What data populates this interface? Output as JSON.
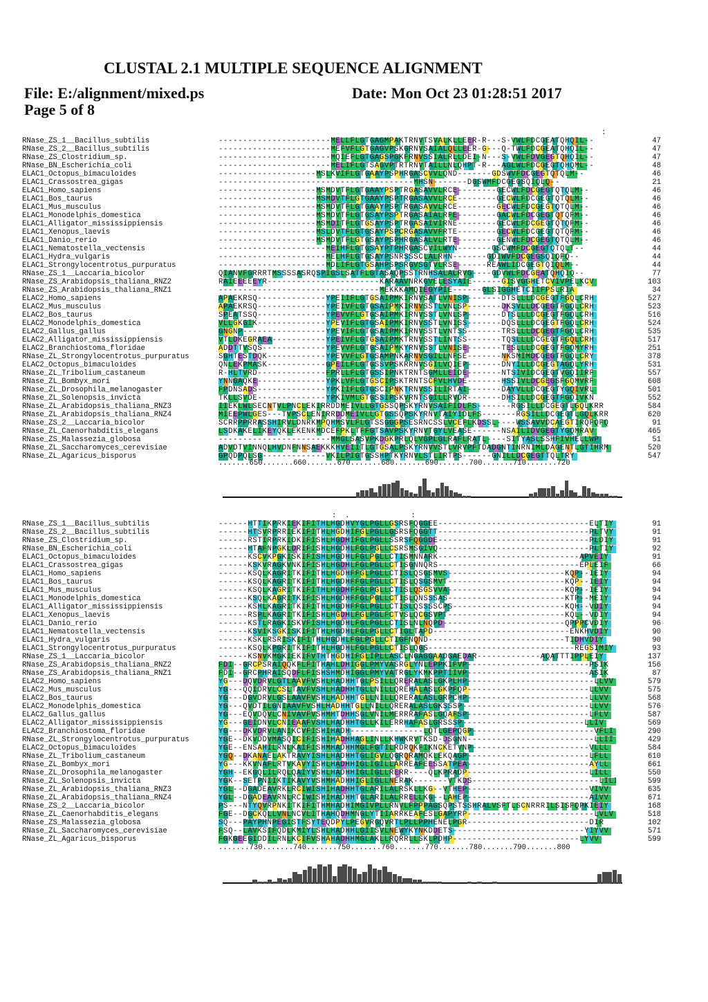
{
  "header": {
    "title": "CLUSTAL 2.1 MULTIPLE SEQUENCE ALIGNMENT",
    "file": "File: E:/alignment/mixed.ps",
    "date": "Date: Mon Oct 23 01:28:51 2017",
    "page": "Page 5 of 8"
  },
  "colors": {
    "green": "#2fbf62",
    "cyan": "#3cc8d8",
    "teal": "#1aa68a",
    "yellow": "#f2e44a",
    "orange": "#f0a23a",
    "purple": "#b070c8",
    "gray": "#4a4a4a"
  },
  "blocks": [
    {
      "conservation": ":",
      "ruler": ".......650.......660.......670.......680.......690.......700.......710.......720",
      "rows": [
        {
          "name": "RNase_ZS_1__Bacillus_subtilis",
          "seq": "-----------------------MELLFLGTGAGMPAKTRNVTSVALKLLEER-R---S-VWLFDCGEATQHQIL--",
          "count": "47"
        },
        {
          "name": "RNase_ZS_2__Bacillus_subtilis",
          "seq": "-----------------------MEFVFLGTGAGVPSKGRNVSAIALQLLEER-G---Q-TWLFDCGEATQHQIL--",
          "count": "47"
        },
        {
          "name": "RNase_ZS_Clostridium_sp.",
          "seq": "-----------------------MQIEFLGTGAGSPGKFRNVSSIALRLLDEI-N---S-VWLFDVGEGTQHQIL--",
          "count": "47"
        },
        {
          "name": "RNase_BN_Escherichia_coli",
          "seq": "-----------------------MELIFLGTSAGVPTRTRNVTAILLNLQHPT-R---AGLWLFDCGEGTQHQML--",
          "count": "48"
        },
        {
          "name": "ELAC1_Octopus_bimaculoides",
          "seq": "--------------------MSLKVIFLGTGAAYPSPHRGASCVVLQND-------GDSWVFDCGEGTQTQLM--",
          "count": "46"
        },
        {
          "name": "ELAC1_Crassostrea_gigas",
          "seq": "----------------------------------------MHSN-------DGSWMFDCGEGSQIQLQ--",
          "count": "21"
        },
        {
          "name": "ELAC1_Homo_sapiens",
          "seq": "--------------------MSMDVTFLGTGAAYPSPTRGASAVVLRCE--------GECWLFDCGEGTQTQLM--",
          "count": "46"
        },
        {
          "name": "ELAC1_Bos_taurus",
          "seq": "--------------------MSMDVTFLGTGAAYPSPTRGASAVVLRCE--------GECWLFDCGEGTQTQLM--",
          "count": "46"
        },
        {
          "name": "ELAC1_Mus_musculus",
          "seq": "--------------------MSMDVTFLGTGAAYPSPTRGASAVVLRCE--------GECWLFDCGEGTQTQLM--",
          "count": "46"
        },
        {
          "name": "ELAC1_Monodelphis_domestica",
          "seq": "--------------------MSMDVTFLGTGSAYPSPTRGASAIALRFE--------GACWLFDCGEGTQTQFM--",
          "count": "46"
        },
        {
          "name": "ELAC1_Alligator_mississippiensis",
          "seq": "--------------------MSMDITFLGTGSAYPSPTRGASAIVIRNE--------GECWLFDCGEGTQTQFM--",
          "count": "46"
        },
        {
          "name": "ELAC1_Xenopus_laevis",
          "seq": "--------------------MSLDVTFLGTGSAYPSPCRGASAVVFRTE--------GECWLFDCGEGTQTQFM--",
          "count": "46"
        },
        {
          "name": "ELAC1_Danio_rerio",
          "seq": "--------------------MSMDVTFLGTGSAYPSPHRGASALVLRTE--------GENWLFDCGEGTQTQLM--",
          "count": "46"
        },
        {
          "name": "ELAC1_Nematostella_vectensis",
          "seq": "----------------------MEIHFLGTGSAYPTPHRGASCVILWYN-------GSCWMFDCGEGTQTQLT--",
          "count": "44"
        },
        {
          "name": "ELAC1_Hydra_vulgaris",
          "seq": "----------------------MELHFLGTGSAYPSNRSSSCLALRHN-------GDIWVFDCGEGSQIQFQ--",
          "count": "44"
        },
        {
          "name": "ELAC1_Strongylocentrotus_purpuratus",
          "seq": "----------------------MDLIFLGTGSAHPSPSRGVSGTVLRSE------REAWLIDCGEGTQIQLM--",
          "count": "44"
        },
        {
          "name": "RNase_ZS_1__Laccaria_bicolor",
          "seq": "QIANVFGRRRTMSSSSASRQSPIGSLSATFLGTASAQPSSTRNHSALALRVG----GDVWLFDCGEATQHQIQ--",
          "count": "77"
        },
        {
          "name": "RNase_ZS_Arabidopsis_thaliana_RNZ2",
          "seq": "RAIEEEEEYR-----------------------KARAAVNRKGVELESYAIE------GISVGGHETCVIVPELKCV",
          "count": "103"
        },
        {
          "name": "RNase_ZS_Arabidopsis_thaliana_RNZ1",
          "seq": "---------------------------------MEKKKAMQIEGYPIE------GLSIGGHETCIIFPSLRIA",
          "count": "34"
        },
        {
          "name": "ELAC2_Homo_sapiens",
          "seq": "APAEKRSQ--------------YPEIIFLGTGSAIPMKIRNVSATLVNISP-------DTSLLLDCGEGTFGQLCRH",
          "count": "527"
        },
        {
          "name": "ELAC2_Mus_musculus",
          "seq": "APAEKRSQ--------------YPEIVFLGTGSAIPMKIRNVSSTLVNLSP-------DKSVLLDCGEGTFGQLCRH",
          "count": "523"
        },
        {
          "name": "ELAC2_Bos_taurus",
          "seq": "SPEATSSQ--------------YPEVVFLGTGSAIPMKIRNVSSTLVNLSP-------DTSLLLDCGEGTFGQLCRH",
          "count": "516"
        },
        {
          "name": "ELAC2_Monodelphis_domestica",
          "seq": "VLLGKGIK--------------YPEVIFLGTGSAIPMKIRNVSSTLVNISS-------DQSLLLDCGEGTFGQLCRH",
          "count": "524"
        },
        {
          "name": "ELAC2_Gallus_gallus",
          "seq": "GNGNP-----------------YPEVIFLGTGSAIPMKIRNVSSTLVNTSS-------TRSLLLDCGEGTFGQLCRH",
          "count": "535"
        },
        {
          "name": "ELAC2_Alligator_mississippiensis",
          "seq": "VTLDKEGRAEA-----------YPEIVFLGTGSAIPMKTRNVSSTLINTSS-------TQSLLLDCGEGTFGQLCRH",
          "count": "517"
        },
        {
          "name": "ELAC2_Branchiostoma_floridae",
          "seq": "ADDTTVSQS-------------YPEVVFLGTGSAIPMKYRNVSSTLVNISE-------TESLLLDCGEGTFGQMYRH",
          "count": "251"
        },
        {
          "name": "RNase_ZL_Strongylocentrotus_purpuratus",
          "seq": "SGHTESTDQK------------YPEVVFLGTGSAMPNKARNVSGILLNFSE-------NKSMIMDCGEGTFGQLCRY",
          "count": "378"
        },
        {
          "name": "ELAC2_Octopus_bimaculoides",
          "seq": "QNLEKPMASK------------GPEILFLGTGSSVPSKRRNVSGILVQIEP-------DNYILLDCGEGTAGQLYRH",
          "count": "531"
        },
        {
          "name": "RNase_ZL_Tribolium_castaneum",
          "seq": "R-HLTVRD--------------FPRLLFLGTGSSIPNKTRNTSGMLLEIDE-------NTSIVIDCGEGTVGQIIRF",
          "count": "557"
        },
        {
          "name": "RNase_ZL_Bombyx_mori",
          "seq": "YNNGAQKE--------------YPKLVFLGTGSCIPSKTRNTSCFVLHVDE-------HSSIVLDCGEGSFGQMVRF",
          "count": "608"
        },
        {
          "name": "RNase_ZL_Drosophila_melanogaster",
          "seq": "FPDNSADS--------------YPKIIFLGTGSCIPNKTRNVSSILIRTAI-------DAYVLLDCGEGTYGQIVRL",
          "count": "501"
        },
        {
          "name": "RNase_ZL_Solenopsis_invicta",
          "seq": "TKLLSVDE--------------YPKIVMLGTGSSIPSKVRNTSGILLRVDR-------DHSILLDCGEGTFGQIVKN",
          "count": "552"
        },
        {
          "name": "RNase_ZL_Arabidopsis_thaliana_RNZ3",
          "seq": "IIEKLWLSECNTVLPNCLEKIRRDDMEIVLLGTGSSQPSKYRNVSAIFIDLFS-------RGSILLDCGEGTLGQLKRR",
          "count": "584"
        },
        {
          "name": "RNase_ZL_Arabidopsis_thaliana_RNZ4",
          "seq": "MIEEPWLGES---TVPSCLENIRRDDMEIVLLGTGSSQPSKYRNVTAIYIDLFS-------RGSILLDCGEGTLGQLKRR",
          "count": "620"
        },
        {
          "name": "RNase_ZS_2__Laccaria_bicolor",
          "seq": "SCRRPPRRASSHIRVLDNRKMPQHMSVLFLGTSSGGGPSESRNCSSLVCEFLKDSSL----WSSAVVDCAEGTIRQFQFQ",
          "count": "91"
        },
        {
          "name": "RNase_ZL_Caenorhabditis_elegans",
          "seq": "LSDKAKELIKEYQKLEKENKMDCEFPKLTFFGTSAVPSKYRNVTGYLVEASE------NSAILIDVGEGTYGQMRAV",
          "count": "465"
        },
        {
          "name": "RNase_ZS_Malassezia_globosa",
          "seq": "-----------------------MMGLSASVPKDGKPRLQLVGPLGLRAFLRATL----SITYASLSSHFIVHELLWP",
          "count": "51"
        },
        {
          "name": "RNase_ZL_Saccharomyces_cerevisiae",
          "seq": "ADVDTVINNQLHVDNFNNSAEKKKHVEIITLGTGSALPSKYRNVVSTLVRVPFTDADGNTINRNIMLDAGENTLGTIHRM",
          "count": "520"
        },
        {
          "name": "RNase_ZL_Agaricus_bisporus",
          "seq": "GPQDPQLSG-------------VKILPIGTGSSHPTKYRNVLSTLIRTPS------GNILLDCGEGTTQLTRY",
          "count": "547"
        }
      ],
      "histogram": [
        0,
        0,
        0,
        0,
        0,
        0,
        0,
        0,
        0,
        0,
        0,
        0,
        0,
        0,
        0,
        0,
        0,
        0,
        0,
        0,
        0,
        0,
        0,
        0,
        0,
        0,
        0,
        0,
        0,
        0,
        3,
        4,
        4,
        5,
        3,
        6,
        7,
        7,
        8,
        9,
        5,
        4,
        3,
        2,
        6,
        10,
        4,
        3,
        5,
        8,
        6,
        4,
        3,
        2,
        1,
        1,
        0,
        0,
        0,
        0,
        0,
        0,
        0,
        0,
        0,
        0,
        0,
        0,
        0,
        2,
        3,
        5,
        5,
        5,
        6,
        2,
        4,
        9,
        4,
        3,
        1,
        6,
        5,
        3,
        2,
        2,
        2,
        1,
        1,
        0
      ]
    },
    {
      "conservation": ":  .              :",
      "ruler": ".......730.......740.......750.......760.......770.......780.......790.......800",
      "rows": [
        {
          "name": "RNase_ZS_1__Bacillus_subtilis",
          "seq": "------HTTIKPRKIEKIFITHLHGDHVYGLPGLLGSRSFQGGEE-------------------------------ELTIY",
          "count": "91"
        },
        {
          "name": "RNase_ZS_2__Bacillus_subtilis",
          "seq": "------HTSVRPRRIEKIFITHLHGDHIFGLPGLLGSRSFQGGTT-------------------------------PLTVY",
          "count": "91"
        },
        {
          "name": "RNase_ZS_Clostridium_sp.",
          "seq": "------RSTIRPRKIDKIFISHLHGDHIFGLPGLLSSRSFQGGDE-------------------------------PLDIY",
          "count": "91"
        },
        {
          "name": "RNase_BN_Escherichia_coli",
          "seq": "------HTAFNPGKLDRIFISHLHGDHLFGLPGLLCSRSMSGIVQ-------------------------------PLTIY",
          "count": "92"
        },
        {
          "name": "ELAC1_Octopus_bimaculoides",
          "seq": "------KSCVKPGKISKIFISHLHGDHLFGLPGLLCTISMNNARK-----------------------------APVEIY",
          "count": "91"
        },
        {
          "name": "ELAC1_Crassostrea_gigas",
          "seq": "------KSKVRAGKVNKIFISHLHGDHLFGLPGLLCTISGNNQRS-----------------------------EPLEIF",
          "count": "66"
        },
        {
          "name": "ELAC1_Homo_sapiens",
          "seq": "------KSQLKAGRITKIFITHLHGDHFFGLPGLLCTISLQSGSMVS------------------------KQP--IEIY",
          "count": "94"
        },
        {
          "name": "ELAC1_Bos_taurus",
          "seq": "------KSQLKAGRITKIFITHLHGDHFFGLPGLLCTISLQSGSMVT------------------------KQP--IEIY",
          "count": "94"
        },
        {
          "name": "ELAC1_Mus_musculus",
          "seq": "------KSQLKAGRITKIFITHLHGDHFFGLPGLLCTISLQSGSVVA------------------------KQP--IEIY",
          "count": "94"
        },
        {
          "name": "ELAC1_Monodelphis_domestica",
          "seq": "------KSQLKAGRITKIFISHLHGDHFFGLPGLLCTISLQNSSSAS------------------------KTP--MEIY",
          "count": "94"
        },
        {
          "name": "ELAC1_Alligator_mississippiensis",
          "seq": "------KSHLKAGRITKIFITHLHGDHFFGLPGLLCTISLQSSSSCPS-----------------------KQH--VDIY",
          "count": "94"
        },
        {
          "name": "ELAC1_Xenopus_laevis",
          "seq": "------RSPLKAGRITKIFISHLHGDHLFGLPGLFCTVSLQCGSVPT------------------------KQL--VDIY",
          "count": "94"
        },
        {
          "name": "ELAC1_Danio_rerio",
          "seq": "------KSTLRAGKISKVFISHLHGDHLFGLPGLLCTISLNLNQPD-------------------------QPPPCVDIY",
          "count": "96"
        },
        {
          "name": "ELAC1_Nematostella_vectensis",
          "seq": "------KSVIKSGKISKIFITHLHGDHLFGLPGLLCTIGLTAPD----------------------------ENKHVDIY",
          "count": "90"
        },
        {
          "name": "ELAC1_Hydra_vulgaris",
          "seq": "------KSKLRSRISKIFITHLHGDHLFGLPGLLCTIGFNQND----------------------------TIDHVDIY",
          "count": "90"
        },
        {
          "name": "ELAC1_Strongylocentrotus_purpuratus",
          "seq": "------KSQLKPGRITKIFITHLHGDHLFGLPGLLCTISLQGS------------------------------REGSIMIY",
          "count": "93"
        },
        {
          "name": "RNase_ZS_1__Laccaria_bicolor",
          "seq": "------KSNVKMGKIEKIFVTHTHGDHIFGLIPLLASCLNGAGGAADGAEDAR-------------AQATTTIPPLEIY",
          "count": "137"
        },
        {
          "name": "RNase_ZS_Arabidopsis_thaliana_RNZ2",
          "seq": "FDI--GRCPSRAIQQKFLFITHAHLDHIGGLPMYVASRGLYNLEPPKIFVP-------------------------PSIK",
          "count": "156"
        },
        {
          "name": "RNase_ZS_Arabidopsis_thaliana_RNZ1",
          "seq": "FDI--GRCPHRAISQDFLFISHSHMDHIGGLPMYVATRGLYKMKPPTIIVP-------------------------ASIK",
          "count": "87"
        },
        {
          "name": "ELAC2_Homo_sapiens",
          "seq": "YG---DQVDRVLGTLAAVFVSHLHADHHTGLPSILLQRERALASLGKPLHP--------------------------LLVV",
          "count": "579"
        },
        {
          "name": "ELAC2_Mus_musculus",
          "seq": "YG---QQIDRVLCSLTAVFVSHLHADHHTGLLNILLQREHALASLGKPFQP-------------------------LLVV",
          "count": "575"
        },
        {
          "name": "ELAC2_Bos_taurus",
          "seq": "YG---DGVDRVLGSLAAVFVSHLHADHHTGLLNILLQRERALASLGRPCHP-------------------------LLVV",
          "count": "568"
        },
        {
          "name": "ELAC2_Monodelphis_domestica",
          "seq": "YG---QVDTILGNIAAVFVSHLHADHHTGLLNILLQRERALASLGKSSSP--------------------------LLVV",
          "count": "576"
        },
        {
          "name": "ELAC2_Gallus_gallus",
          "seq": "YG---EQVDQVLCNIVAVFVSHMHTDHHSGLVNILMERRRAFASLGQAFSP-------------------------LFLV",
          "count": "587"
        },
        {
          "name": "ELAC2_Alligator_mississippiensis",
          "seq": "YG---GEIDNVLCNIEAAFVSHLHADHHTGLLKILERRHAFASLGRSSSP-------------------------LLIV",
          "count": "569"
        },
        {
          "name": "ELAC2_Branchiostoma_floridae",
          "seq": "YG---DKVDRVLANIKCVFISHIHADH---------------LQTLGEPQGP-------------------------VFLI",
          "count": "290"
        },
        {
          "name": "RNase_ZL_Strongylocentrotus_purpuratus",
          "seq": "YGE--DKVDDVMASQICIFISHIHADHHAGLINLLKHWKRVTKSD-DSGNN--------------------------LLII",
          "count": "429"
        },
        {
          "name": "ELAC2_Octopus_bimaculoides",
          "seq": "YGE--ENSAHILRNLKAIFISHMHADHHMGLFGTILRDRQKFIKNCKETVNP------------------------VLLL",
          "count": "584"
        },
        {
          "name": "RNase_ZL_Tribolium_castaneum",
          "seq": "YGQ--DKANAELAKTRAVYISHLHADHHTGLIGVLQGRQRAMQKLEKQAGP-------------------------LFLL",
          "count": "610"
        },
        {
          "name": "RNase_ZL_Bombyx_mori",
          "seq": "YG---KKVNAFLRTVKAVYISHLHADHHIGLIGILLARREAFEESSATPEA-------------------------AYLL",
          "count": "661"
        },
        {
          "name": "RNase_ZL_Drosophila_melanogaster",
          "seq": "YGH--EKGQLILRQLQAIYVSHLHADHHIGLIGLLRERR----QLKPRADP-------------------------LILL",
          "count": "550"
        },
        {
          "name": "RNase_ZL_Solenopsis_invicta",
          "seq": "YGK--SETPNIIKTIKAVYVSHMHADHHIGLIGLLNERAK-------VTKDS--------------------------LILI",
          "count": "599"
        },
        {
          "name": "RNase_ZL_Arabidopsis_thaliana_RNZ3",
          "seq": "YGL--DGADEAVRKLRCIWISHIHADHHTGLARILALRSKLLKG--VTHEP-------------------------VIVV",
          "count": "635"
        },
        {
          "name": "RNase_ZL_Arabidopsis_thaliana_RNZ4",
          "seq": "YGL--DGADEAVRNLRCIWISHIHADHHTGLARILALRRELLKG--LAHEP-------------------------AIVV",
          "count": "671"
        },
        {
          "name": "RNase_ZS_2__Laccaria_bicolor",
          "seq": "PS---NTYQVRPNKITKIFITHMHADHIMGIVPLLRNVLFPPPAGSQPSTSSHRALVSFTLSCNRRRILSISFQPKIEIY",
          "count": "168"
        },
        {
          "name": "RNase_ZL_Caenorhabditis_elegans",
          "seq": "FGE--DGCKQLLVNLNCVLITHAHQDHMNGLYTIIARRKEAFESLGAPYRP--------------------------LVLV",
          "count": "518"
        },
        {
          "name": "RNase_ZS_Malassezia_globosa",
          "seq": "SQ---PAYPHNPEGISTFSYTEQDPYLPEGVRGQVRTLPLLPPHENELPGR-------------------------DIR",
          "count": "102"
        },
        {
          "name": "RNase_ZL_Saccharomyces_cerevisiae",
          "seq": "FSQ--LAVKSIFQDLKMIYLSHLHADHHLGIISVLNEWYKYNKDDETS---------------------------YIYVV",
          "count": "571"
        },
        {
          "name": "RNase_ZL_Agaricus_bisporus",
          "seq": "FGKGEEGIDDILRNLKCIFVSHAHADHHMGLAKLLRQRRLLSKLPDHP--------------------------LYVV",
          "count": "599"
        }
      ],
      "histogram": [
        0,
        0,
        0,
        0,
        0,
        0,
        2,
        1,
        1,
        2,
        1,
        3,
        2,
        3,
        6,
        5,
        7,
        9,
        8,
        10,
        9,
        10,
        4,
        9,
        10,
        9,
        8,
        5,
        6,
        10,
        8,
        7,
        9,
        6,
        5,
        4,
        3,
        3,
        2,
        2,
        1,
        1,
        1,
        1,
        0,
        0,
        0,
        0,
        0,
        1,
        0,
        1,
        0,
        0,
        1,
        0,
        0,
        0,
        0,
        0,
        0,
        0,
        0,
        0,
        0,
        0,
        0,
        0,
        0,
        0,
        0,
        0,
        0,
        0,
        0,
        5,
        6,
        6,
        7,
        5
      ]
    }
  ]
}
